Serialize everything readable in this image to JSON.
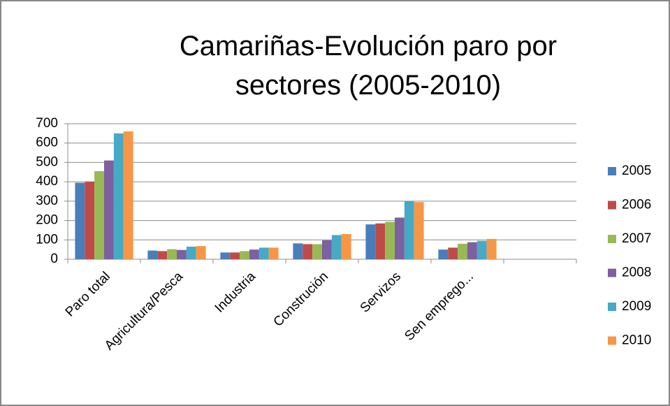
{
  "chart_data": {
    "type": "bar",
    "title": "Camariñas-Evolución paro por sectores (2005-2010)",
    "categories": [
      "Paro total",
      "Agricultura/Pesca",
      "Industria",
      "Construción",
      "Servizos",
      "Sen emprego...",
      null
    ],
    "series": [
      {
        "name": "2005",
        "color": "#4a7ebb",
        "values": [
          395,
          45,
          35,
          82,
          180,
          50,
          null
        ]
      },
      {
        "name": "2006",
        "color": "#be4b48",
        "values": [
          400,
          42,
          35,
          78,
          185,
          60,
          null
        ]
      },
      {
        "name": "2007",
        "color": "#98b954",
        "values": [
          455,
          52,
          42,
          78,
          193,
          80,
          null
        ]
      },
      {
        "name": "2008",
        "color": "#7d60a0",
        "values": [
          510,
          48,
          50,
          98,
          215,
          88,
          null
        ]
      },
      {
        "name": "2009",
        "color": "#46aac5",
        "values": [
          650,
          65,
          60,
          125,
          300,
          95,
          null
        ]
      },
      {
        "name": "2010",
        "color": "#f79646",
        "values": [
          660,
          68,
          60,
          130,
          295,
          105,
          null
        ]
      }
    ],
    "ylim": [
      0,
      700
    ],
    "yticks": [
      0,
      100,
      200,
      300,
      400,
      500,
      600,
      700
    ],
    "grid": true,
    "legend": "right"
  }
}
